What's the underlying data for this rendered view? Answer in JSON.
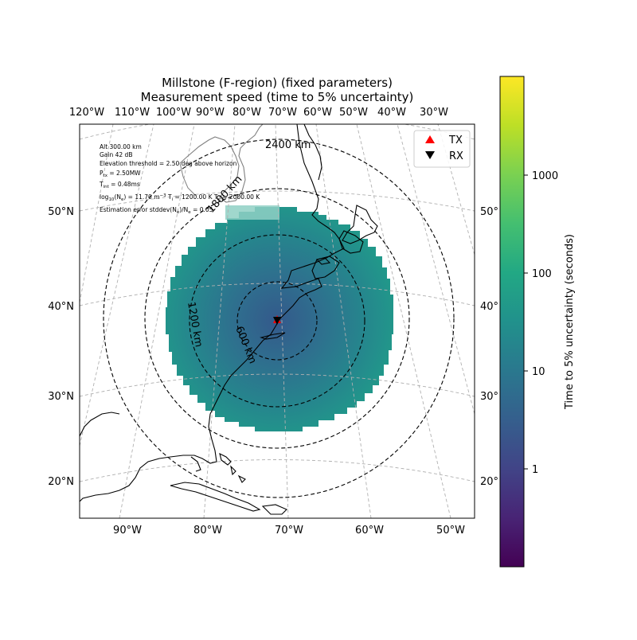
{
  "title": {
    "line1": "Millstone (F-region) (fixed parameters)",
    "line2": "Measurement speed (time to 5% uncertainty)"
  },
  "top_lon_labels": [
    "120°W",
    "110°W",
    "100°W",
    "90°W",
    "80°W",
    "70°W",
    "60°W",
    "50°W",
    "40°W",
    "30°W"
  ],
  "bottom_lon_labels": [
    "90°W",
    "80°W",
    "70°W",
    "60°W",
    "50°W"
  ],
  "left_lat_labels": [
    "50°N",
    "40°N",
    "30°N",
    "20°N"
  ],
  "right_lat_labels": [
    "50°",
    "40°",
    "30°",
    "20°"
  ],
  "range_labels": [
    "600 km",
    "1200 km",
    "1800 km",
    "2400 km"
  ],
  "params": {
    "alt": "Alt 300.00 km",
    "gain": "Gain 42 dB",
    "elev": "Elevation threshold = 2.50 deg above horizon",
    "ptx_pre": "P",
    "ptx_sub": "tx",
    "ptx_post": " = 2.50MW",
    "tint_pre": "T",
    "tint_sub": "int",
    "tint_post": " = 0.48ms",
    "ne_pre": "log",
    "ne_sub": "10",
    "ne_mid": "(N",
    "ne_sub2": "e",
    "ne_post": ") = 11.70 m",
    "ne_sup": "−3",
    "ti_pre": "  T",
    "ti_sub": "i",
    "ti_post": " = 1200.00 K T",
    "te_sub": "e",
    "te_post": " = 2000.00 K",
    "err_pre": "Estimation error stddev(N",
    "err_sub1": "e",
    "err_mid": ")/N",
    "err_sub2": "e",
    "err_post": " = 0.05"
  },
  "legend": {
    "tx": "TX",
    "rx": "RX",
    "tx_color": "#ff0000",
    "rx_color": "#000000"
  },
  "colorbar": {
    "label": "Time to 5% uncertainty (seconds)",
    "ticks": [
      "1",
      "10",
      "100",
      "1000"
    ],
    "scale": "log",
    "colormap": "viridis"
  },
  "map_data": {
    "site_lon": -71.49,
    "site_lat": 42.62,
    "coverage_color_inner": "#31688e",
    "coverage_color_outer": "#21a185"
  }
}
